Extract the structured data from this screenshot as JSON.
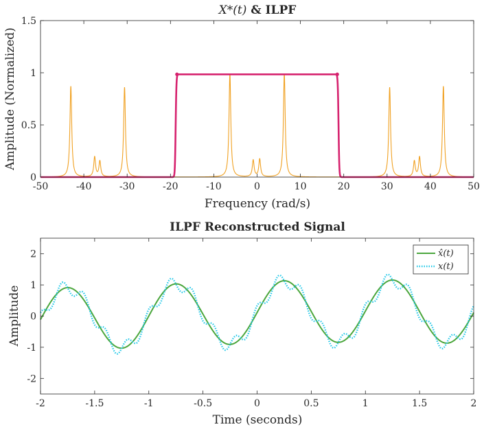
{
  "chart_data": [
    {
      "type": "line",
      "title_math": "X*(t)",
      "title_text": " & ILPF",
      "xlabel": "Frequency (rad/s)",
      "ylabel": "Amplitude (Normalized)",
      "xlim": [
        -50,
        50
      ],
      "ylim": [
        0,
        1.5
      ],
      "xticks": [
        -50,
        -40,
        -30,
        -20,
        -10,
        0,
        10,
        20,
        30,
        40,
        50
      ],
      "yticks": [
        0,
        0.5,
        1,
        1.5
      ],
      "tick_labels_x": [
        "-50",
        "-40",
        "-30",
        "-20",
        "-10",
        "0",
        "10",
        "20",
        "30",
        "40",
        "50"
      ],
      "tick_labels_y": [
        "0",
        "0.5",
        "1",
        "1.5"
      ],
      "grid": false,
      "series": [
        {
          "kind": "spectrum",
          "color": "#f0a020",
          "peaks": [
            {
              "x": -43.0,
              "y": 0.87
            },
            {
              "x": -37.5,
              "y": 0.19
            },
            {
              "x": -36.3,
              "y": 0.15
            },
            {
              "x": -30.6,
              "y": 0.86
            },
            {
              "x": -6.28,
              "y": 0.99
            },
            {
              "x": -0.9,
              "y": 0.16
            },
            {
              "x": 0.6,
              "y": 0.17
            },
            {
              "x": 6.28,
              "y": 0.99
            },
            {
              "x": 30.6,
              "y": 0.86
            },
            {
              "x": 36.3,
              "y": 0.15
            },
            {
              "x": 37.5,
              "y": 0.19
            },
            {
              "x": 43.0,
              "y": 0.87
            }
          ]
        },
        {
          "kind": "filter",
          "color": "#d6226e",
          "cutoff": 18.8,
          "passband": 0.985,
          "stopband": 0
        }
      ]
    },
    {
      "type": "line",
      "title": "ILPF Reconstructed Signal",
      "xlabel": "Time (seconds)",
      "ylabel": "Amplitude",
      "xlim": [
        -2,
        2
      ],
      "ylim": [
        -2.5,
        2.5
      ],
      "xticks": [
        -2,
        -1.5,
        -1,
        -0.5,
        0,
        0.5,
        1,
        1.5,
        2
      ],
      "yticks": [
        -2,
        -1,
        0,
        1,
        2
      ],
      "tick_labels_x": [
        "-2",
        "-1.5",
        "-1",
        "-0.5",
        "0",
        "0.5",
        "1",
        "1.5",
        "2"
      ],
      "tick_labels_y": [
        "-2",
        "-1",
        "0",
        "1",
        "2"
      ],
      "grid": false,
      "legend": "top-right",
      "series": [
        {
          "name": "x̂(t)",
          "color": "#4aa63c",
          "style": "solid",
          "components": [
            {
              "amp": 1.0,
              "omega": 6.2832,
              "phase": 0
            },
            {
              "amp": 0.16,
              "omega": 0.7854,
              "phase": 0.8
            }
          ]
        },
        {
          "name": "x(t)",
          "color": "#22c8e8",
          "style": "dotted",
          "components": [
            {
              "amp": 1.0,
              "omega": 6.2832,
              "phase": 0
            },
            {
              "amp": 0.16,
              "omega": 0.7854,
              "phase": 0.8
            },
            {
              "amp": 0.22,
              "omega": 31.416,
              "phase": 1.5708
            }
          ]
        }
      ]
    }
  ]
}
